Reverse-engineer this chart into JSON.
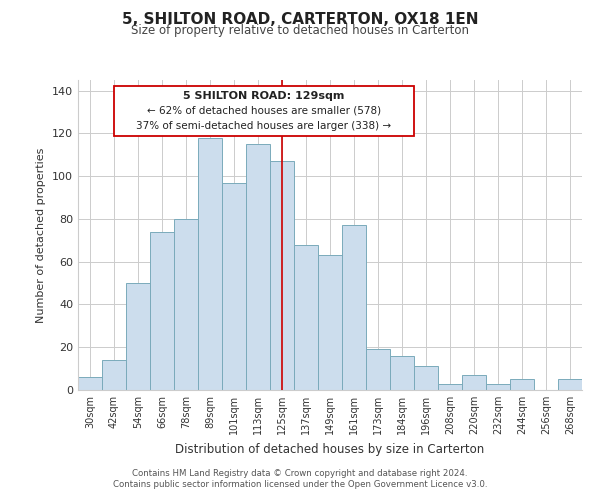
{
  "title": "5, SHILTON ROAD, CARTERTON, OX18 1EN",
  "subtitle": "Size of property relative to detached houses in Carterton",
  "xlabel": "Distribution of detached houses by size in Carterton",
  "ylabel": "Number of detached properties",
  "bar_labels": [
    "30sqm",
    "42sqm",
    "54sqm",
    "66sqm",
    "78sqm",
    "89sqm",
    "101sqm",
    "113sqm",
    "125sqm",
    "137sqm",
    "149sqm",
    "161sqm",
    "173sqm",
    "184sqm",
    "196sqm",
    "208sqm",
    "220sqm",
    "232sqm",
    "244sqm",
    "256sqm",
    "268sqm"
  ],
  "bar_values": [
    6,
    14,
    50,
    74,
    80,
    118,
    97,
    115,
    107,
    68,
    63,
    77,
    19,
    16,
    11,
    3,
    7,
    3,
    5,
    0,
    5
  ],
  "bar_color": "#ccdded",
  "bar_edge_color": "#7aaabb",
  "highlight_index": 8,
  "highlight_line_color": "#cc0000",
  "annotation_text_line1": "5 SHILTON ROAD: 129sqm",
  "annotation_text_line2": "← 62% of detached houses are smaller (578)",
  "annotation_text_line3": "37% of semi-detached houses are larger (338) →",
  "annotation_box_color": "#ffffff",
  "annotation_box_edge_color": "#cc0000",
  "ylim": [
    0,
    145
  ],
  "footer_line1": "Contains HM Land Registry data © Crown copyright and database right 2024.",
  "footer_line2": "Contains public sector information licensed under the Open Government Licence v3.0.",
  "bg_color": "#ffffff",
  "grid_color": "#cccccc"
}
